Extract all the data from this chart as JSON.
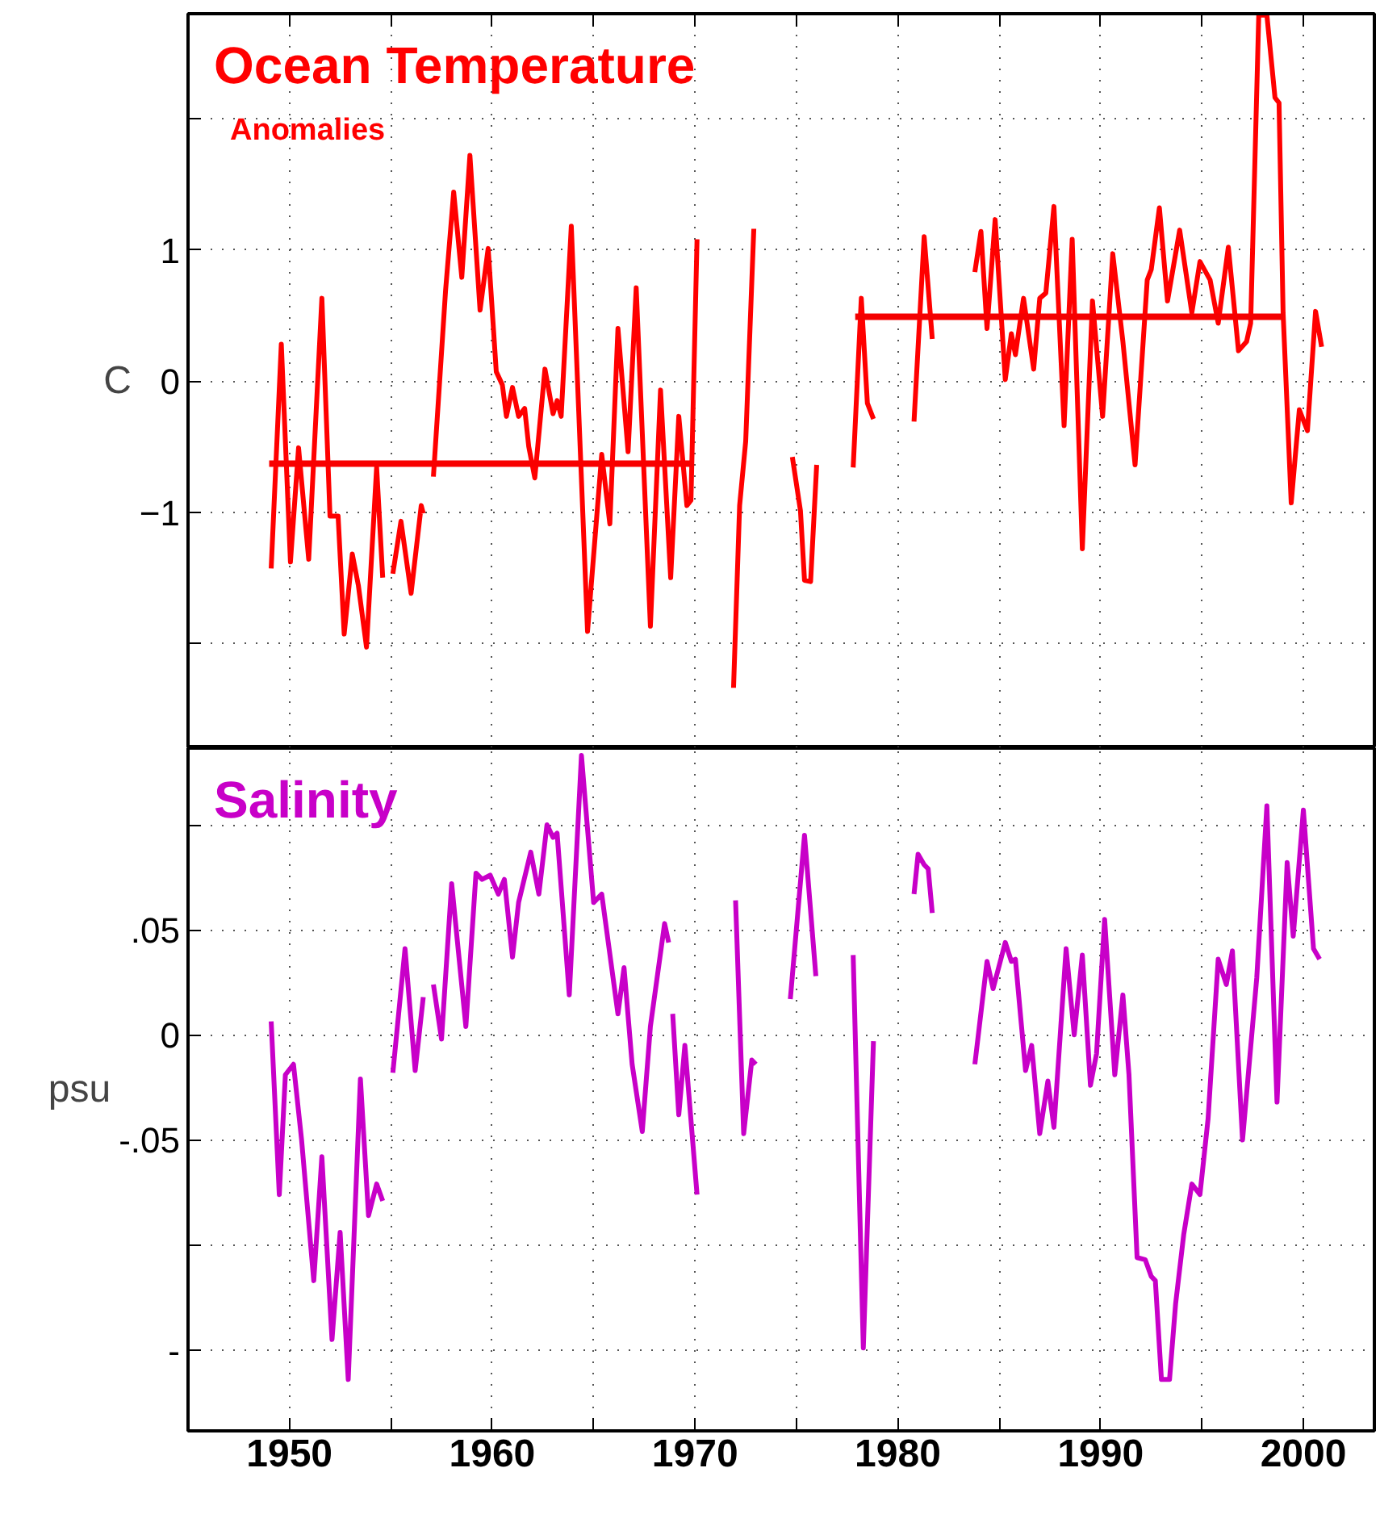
{
  "chart_data": [
    {
      "type": "line",
      "title": "Ocean Temperature",
      "subtitle": "Anomalies",
      "ylabel": "C",
      "xlim": [
        1945,
        2003.5
      ],
      "ylim": [
        -2.8,
        2.8
      ],
      "xticks": [
        {
          "value": 1945,
          "label": null
        },
        {
          "value": 1950,
          "label": null
        },
        {
          "value": 1955,
          "label": null
        },
        {
          "value": 1960,
          "label": null
        },
        {
          "value": 1965,
          "label": null
        },
        {
          "value": 1970,
          "label": null
        },
        {
          "value": 1975,
          "label": null
        },
        {
          "value": 1980,
          "label": null
        },
        {
          "value": 1985,
          "label": null
        },
        {
          "value": 1990,
          "label": null
        },
        {
          "value": 1995,
          "label": null
        },
        {
          "value": 2000,
          "label": null
        }
      ],
      "yticks": [
        {
          "value": -2,
          "label": null
        },
        {
          "value": -1,
          "label": "−1"
        },
        0,
        1,
        {
          "value": 2,
          "label": null
        }
      ],
      "grid": true,
      "tick_labels": "y",
      "series": [
        {
          "color": "#ff0000",
          "x": [
            1949.1,
            1949.6,
            1950.05,
            1950.45,
            1950.95,
            1951.6,
            1952.0,
            1952.4,
            1952.7,
            1953.1,
            1953.4,
            1953.8,
            1954.3,
            1954.6,
            1954.85,
            1955.1,
            1955.5,
            1956.0,
            1956.5,
            1956.6,
            1956.85,
            1957.1,
            1957.7,
            1958.1,
            1958.5,
            1958.9,
            1959.4,
            1959.8,
            1960.2,
            1960.5,
            1960.7,
            1961.0,
            1961.3,
            1961.6,
            1961.8,
            1962.1,
            1962.6,
            1963.0,
            1963.2,
            1963.4,
            1963.9,
            1964.7,
            1965.4,
            1965.8,
            1966.2,
            1966.7,
            1967.1,
            1967.8,
            1968.3,
            1968.8,
            1969.2,
            1969.6,
            1969.8,
            1970.1,
            1971.0,
            1971.9,
            1972.2,
            1972.5,
            1972.9,
            1974.0,
            1974.8,
            1975.2,
            1975.4,
            1975.7,
            1976.0,
            1977.0,
            1977.8,
            1978.2,
            1978.5,
            1978.8,
            1979.8,
            1980.8,
            1981.3,
            1981.7,
            1982.8,
            1983.8,
            1984.1,
            1984.4,
            1984.8,
            1985.3,
            1985.6,
            1985.8,
            1986.2,
            1986.7,
            1987.0,
            1987.3,
            1987.7,
            1988.2,
            1988.6,
            1989.1,
            1989.6,
            1990.1,
            1990.6,
            1991.1,
            1991.7,
            1992.3,
            1992.5,
            1992.9,
            1993.3,
            1993.9,
            1994.5,
            1994.9,
            1995.4,
            1995.8,
            1996.3,
            1996.8,
            1997.2,
            1997.4,
            1997.8,
            1998.2,
            1998.6,
            1998.8,
            1999.0,
            1999.4,
            1999.8,
            2000.2,
            2000.6,
            2000.9
          ],
          "values": [
            -1.43,
            0.28,
            -1.38,
            -0.51,
            -1.36,
            0.63,
            -1.03,
            -1.03,
            -1.93,
            -1.32,
            -1.56,
            -2.03,
            -0.66,
            -1.5,
            null,
            -1.47,
            -1.07,
            -1.62,
            -0.95,
            -1.01,
            null,
            -0.73,
            0.69,
            1.44,
            0.79,
            1.72,
            0.54,
            1.01,
            0.07,
            -0.03,
            -0.27,
            -0.05,
            -0.27,
            -0.21,
            -0.5,
            -0.74,
            0.09,
            -0.25,
            -0.15,
            -0.27,
            1.18,
            -1.91,
            -0.56,
            -1.09,
            0.4,
            -0.54,
            0.71,
            -1.87,
            -0.07,
            -1.5,
            -0.27,
            -0.95,
            -0.91,
            1.08,
            null,
            -2.34,
            -0.95,
            -0.46,
            1.16,
            null,
            -0.58,
            -0.99,
            -1.52,
            -1.53,
            -0.64,
            null,
            -0.66,
            0.63,
            -0.17,
            -0.29,
            null,
            -0.31,
            1.1,
            0.32,
            null,
            0.83,
            1.14,
            0.4,
            1.23,
            0.01,
            0.36,
            0.2,
            0.63,
            0.09,
            0.63,
            0.67,
            1.33,
            -0.34,
            1.08,
            -1.28,
            0.61,
            -0.27,
            0.97,
            0.3,
            -0.64,
            0.77,
            0.85,
            1.32,
            0.61,
            1.15,
            0.52,
            0.91,
            0.77,
            0.44,
            1.02,
            0.23,
            0.3,
            0.44,
            2.79,
            2.79,
            2.16,
            2.12,
            0.52,
            -0.93,
            -0.22,
            -0.38,
            0.53,
            0.26
          ]
        },
        {
          "color": "#f80000",
          "x": [
            1949.0,
            1969.9
          ],
          "values": [
            -0.63,
            -0.63
          ]
        },
        {
          "color": "#f40000",
          "x": [
            1977.9,
            1999.0
          ],
          "values": [
            0.49,
            0.49
          ]
        }
      ]
    },
    {
      "type": "line",
      "title": "Salinity",
      "ylabel": "psu",
      "xlim": [
        1945,
        2003.5
      ],
      "ylim": [
        -0.1885,
        0.1365
      ],
      "xticks": [
        {
          "value": 1945,
          "label": null
        },
        1950,
        {
          "value": 1955,
          "label": null
        },
        1960,
        {
          "value": 1965,
          "label": null
        },
        1970,
        {
          "value": 1975,
          "label": null
        },
        1980,
        {
          "value": 1985,
          "label": null
        },
        1990,
        {
          "value": 1995,
          "label": null
        },
        2000
      ],
      "yticks": [
        {
          "value": -0.15,
          "label": "-"
        },
        {
          "value": -0.1,
          "label": null
        },
        {
          "value": -0.05,
          "label": "-.05"
        },
        {
          "value": 0,
          "label": "0"
        },
        {
          "value": 0.05,
          "label": ".05"
        },
        {
          "value": 0.1,
          "label": null
        }
      ],
      "grid": true,
      "series": [
        {
          "color": "#c800c8",
          "x": [
            1949.1,
            1949.5,
            1949.8,
            1950.2,
            1950.6,
            1951.2,
            1951.6,
            1952.1,
            1952.5,
            1952.9,
            1953.5,
            1953.9,
            1954.3,
            1954.6,
            1954.85,
            1955.1,
            1955.7,
            1956.2,
            1956.6,
            1956.85,
            1957.1,
            1957.5,
            1958.0,
            1958.7,
            1959.2,
            1959.5,
            1959.9,
            1960.3,
            1960.6,
            1961.0,
            1961.3,
            1961.9,
            1962.3,
            1962.7,
            1963.0,
            1963.2,
            1963.8,
            1964.4,
            1965.0,
            1965.4,
            1966.2,
            1966.5,
            1966.9,
            1967.4,
            1967.8,
            1968.5,
            1968.7,
            1968.8,
            1968.9,
            1969.2,
            1969.5,
            1970.1,
            1971.0,
            1972.0,
            1972.4,
            1972.8,
            1973.0,
            1974.0,
            1974.7,
            1975.4,
            1975.96,
            1977.0,
            1977.8,
            1978.3,
            1978.8,
            1979.8,
            1980.8,
            1981.0,
            1981.3,
            1981.5,
            1981.7,
            1982.8,
            1983.8,
            1984.4,
            1984.7,
            1985.3,
            1985.6,
            1985.8,
            1986.3,
            1986.6,
            1987.0,
            1987.4,
            1987.7,
            1988.3,
            1988.7,
            1989.1,
            1989.5,
            1989.8,
            1990.2,
            1990.7,
            1991.1,
            1991.4,
            1991.8,
            1992.2,
            1992.5,
            1992.7,
            1993.0,
            1993.4,
            1993.7,
            1994.1,
            1994.5,
            1994.9,
            1995.3,
            1995.8,
            1996.2,
            1996.5,
            1997.0,
            1997.7,
            1998.2,
            1998.7,
            1999.2,
            1999.5,
            2000.0,
            2000.5,
            2000.8
          ],
          "values": [
            0.0064,
            -0.076,
            -0.019,
            -0.014,
            -0.05,
            -0.117,
            -0.058,
            -0.145,
            -0.094,
            -0.164,
            -0.021,
            -0.086,
            -0.071,
            -0.079,
            null,
            -0.018,
            0.041,
            -0.017,
            0.018,
            null,
            0.024,
            -0.002,
            0.072,
            0.004,
            0.077,
            0.074,
            0.076,
            0.067,
            0.074,
            0.037,
            0.063,
            0.087,
            0.067,
            0.1,
            0.094,
            0.096,
            0.019,
            0.133,
            0.063,
            0.067,
            0.01,
            0.032,
            -0.014,
            -0.046,
            0.004,
            0.053,
            0.044,
            null,
            0.01,
            -0.038,
            -0.005,
            -0.076,
            null,
            0.064,
            -0.047,
            -0.012,
            -0.014,
            null,
            0.017,
            0.095,
            0.028,
            null,
            0.038,
            -0.149,
            -0.003,
            null,
            0.067,
            0.086,
            0.081,
            0.079,
            0.058,
            null,
            -0.014,
            0.035,
            0.022,
            0.044,
            0.035,
            0.036,
            -0.017,
            -0.005,
            -0.047,
            -0.022,
            -0.044,
            0.041,
            0.0,
            0.038,
            -0.024,
            -0.009,
            0.055,
            -0.019,
            0.019,
            -0.019,
            -0.106,
            -0.107,
            -0.115,
            -0.117,
            -0.164,
            -0.164,
            -0.128,
            -0.095,
            -0.071,
            -0.076,
            -0.04,
            0.036,
            0.024,
            0.04,
            -0.05,
            0.027,
            0.109,
            -0.032,
            0.082,
            0.047,
            0.107,
            0.041,
            0.036
          ]
        }
      ]
    }
  ]
}
